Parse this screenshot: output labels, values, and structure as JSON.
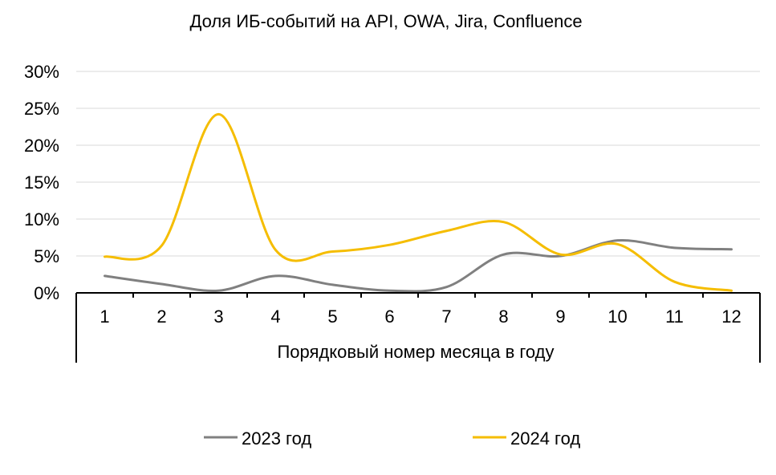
{
  "chart_data": {
    "type": "line",
    "title": "Доля ИБ-событий на API, OWA, Jira, Confluence",
    "xlabel": "Порядковый номер месяца в году",
    "ylabel": "",
    "categories": [
      "1",
      "2",
      "3",
      "4",
      "5",
      "6",
      "7",
      "8",
      "9",
      "10",
      "11",
      "12"
    ],
    "y_ticks": [
      "0%",
      "5%",
      "10%",
      "15%",
      "20%",
      "25%",
      "30%"
    ],
    "ylim": [
      0,
      30
    ],
    "y_unit": "%",
    "grid": true,
    "smooth": true,
    "legend_position": "bottom",
    "series": [
      {
        "name": "2023 год",
        "color": "#808080",
        "values": [
          2.3,
          1.2,
          0.3,
          2.3,
          1.1,
          0.3,
          0.8,
          5.2,
          5.0,
          7.1,
          6.1,
          5.9
        ]
      },
      {
        "name": "2024 год",
        "color": "#f5bd00",
        "values": [
          4.9,
          6.4,
          24.2,
          5.8,
          5.6,
          6.5,
          8.4,
          9.6,
          5.2,
          6.6,
          1.5,
          0.3
        ]
      }
    ]
  }
}
